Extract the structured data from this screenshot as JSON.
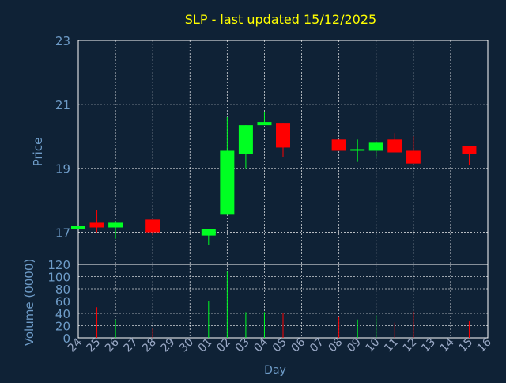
{
  "chart_data": {
    "type": "candlestick",
    "title": "SLP - last updated 15/12/2025",
    "xlabel": "Day",
    "ylabel_price": "Price",
    "ylabel_volume": "Volume (0000)",
    "x_ticks": [
      "24",
      "25",
      "26",
      "27",
      "28",
      "29",
      "30",
      "01",
      "02",
      "03",
      "04",
      "05",
      "06",
      "07",
      "08",
      "09",
      "10",
      "11",
      "12",
      "13",
      "14",
      "15",
      "16"
    ],
    "price_ylim": [
      16.0,
      23.0
    ],
    "price_yticks": [
      "23",
      "21",
      "19",
      "17"
    ],
    "volume_ylim": [
      0,
      120
    ],
    "volume_yticks": [
      "120",
      "100",
      "80",
      "60",
      "40",
      "20",
      "0"
    ],
    "grid": true,
    "colors": {
      "background": "#0f2236",
      "up": "#00ff22",
      "down": "#ff0000",
      "title": "#ffff00",
      "axis_text": "#6e9cc8",
      "tick_label": "#9aa9c6",
      "frame": "#ffffff"
    },
    "candles": [
      {
        "day": "24",
        "open": 17.1,
        "high": 17.2,
        "low": 17.1,
        "close": 17.2
      },
      {
        "day": "25",
        "open": 17.3,
        "high": 17.7,
        "low": 17.0,
        "close": 17.15
      },
      {
        "day": "26",
        "open": 17.15,
        "high": 17.35,
        "low": 16.8,
        "close": 17.3
      },
      {
        "day": "28",
        "open": 17.4,
        "high": 17.4,
        "low": 16.9,
        "close": 17.0
      },
      {
        "day": "01",
        "open": 16.9,
        "high": 17.1,
        "low": 16.6,
        "close": 17.1
      },
      {
        "day": "02",
        "open": 17.55,
        "high": 20.6,
        "low": 17.55,
        "close": 19.55
      },
      {
        "day": "03",
        "open": 19.45,
        "high": 20.35,
        "low": 19.0,
        "close": 20.35
      },
      {
        "day": "04",
        "open": 20.35,
        "high": 20.75,
        "low": 20.35,
        "close": 20.45
      },
      {
        "day": "05",
        "open": 20.4,
        "high": 20.4,
        "low": 19.35,
        "close": 19.65
      },
      {
        "day": "08",
        "open": 19.9,
        "high": 19.9,
        "low": 19.55,
        "close": 19.55
      },
      {
        "day": "09",
        "open": 19.55,
        "high": 19.9,
        "low": 19.2,
        "close": 19.6
      },
      {
        "day": "10",
        "open": 19.55,
        "high": 19.85,
        "low": 19.35,
        "close": 19.8
      },
      {
        "day": "11",
        "open": 19.9,
        "high": 20.1,
        "low": 19.5,
        "close": 19.5
      },
      {
        "day": "12",
        "open": 19.55,
        "high": 20.0,
        "low": 19.15,
        "close": 19.15
      },
      {
        "day": "15",
        "open": 19.7,
        "high": 19.7,
        "low": 19.1,
        "close": 19.45
      }
    ],
    "volume": [
      {
        "day": "24",
        "value": 0,
        "direction": "up"
      },
      {
        "day": "25",
        "value": 50,
        "direction": "down"
      },
      {
        "day": "26",
        "value": 30,
        "direction": "up"
      },
      {
        "day": "28",
        "value": 15,
        "direction": "down"
      },
      {
        "day": "01",
        "value": 60,
        "direction": "up"
      },
      {
        "day": "02",
        "value": 108,
        "direction": "up"
      },
      {
        "day": "03",
        "value": 42,
        "direction": "up"
      },
      {
        "day": "04",
        "value": 42,
        "direction": "up"
      },
      {
        "day": "05",
        "value": 40,
        "direction": "down"
      },
      {
        "day": "08",
        "value": 35,
        "direction": "down"
      },
      {
        "day": "09",
        "value": 30,
        "direction": "up"
      },
      {
        "day": "10",
        "value": 37,
        "direction": "up"
      },
      {
        "day": "11",
        "value": 25,
        "direction": "down"
      },
      {
        "day": "12",
        "value": 43,
        "direction": "down"
      },
      {
        "day": "15",
        "value": 27,
        "direction": "down"
      }
    ]
  }
}
